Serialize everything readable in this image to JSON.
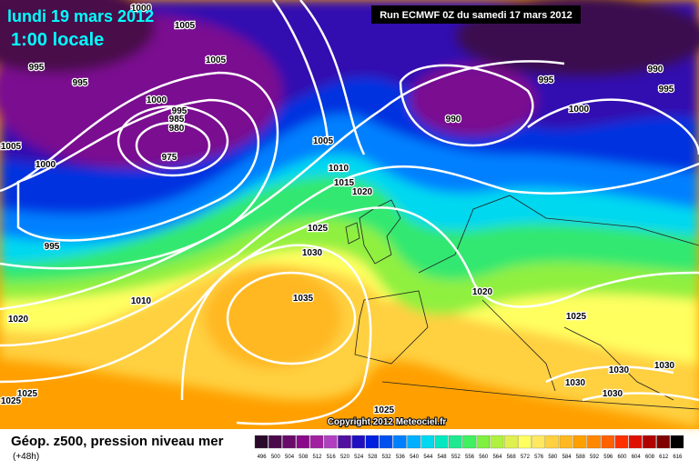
{
  "header": {
    "date": "lundi 19 mars 2012",
    "time": "1:00 locale",
    "run": "Run ECMWF 0Z du samedi 17 mars 2012"
  },
  "copyright": "Copyright 2012 Meteociel.fr",
  "legend": {
    "title": "Géop. z500, pression niveau mer",
    "lead": "(+48h)",
    "labels": [
      496,
      500,
      504,
      508,
      512,
      516,
      520,
      524,
      528,
      532,
      536,
      540,
      544,
      548,
      552,
      556,
      560,
      564,
      568,
      572,
      576,
      580,
      584,
      588,
      592,
      596,
      600,
      604,
      608,
      612,
      616
    ],
    "colors": [
      "#2a0a2a",
      "#4a0a4a",
      "#6a0a6a",
      "#8a0a8a",
      "#a020a0",
      "#b040c0",
      "#5010a0",
      "#2010c0",
      "#0020e0",
      "#0050f0",
      "#0080ff",
      "#00b0ff",
      "#00d8f0",
      "#00e8c0",
      "#20e890",
      "#40f060",
      "#80f040",
      "#b0f040",
      "#e0f050",
      "#ffff60",
      "#ffe860",
      "#ffd040",
      "#ffb820",
      "#ffa000",
      "#ff8800",
      "#ff6000",
      "#ff3000",
      "#e01000",
      "#b00000",
      "#800000",
      "#000000"
    ]
  },
  "isobars": [
    1000,
    1005,
    1005,
    995,
    995,
    1000,
    995,
    985,
    980,
    975,
    1005,
    1000,
    995,
    1010,
    1020,
    1025,
    1025,
    1005,
    1010,
    1015,
    1020,
    1025,
    1030,
    1035,
    1020,
    1025,
    1030,
    1030,
    1030,
    1030,
    1025,
    990,
    995,
    990,
    995,
    1000
  ]
}
